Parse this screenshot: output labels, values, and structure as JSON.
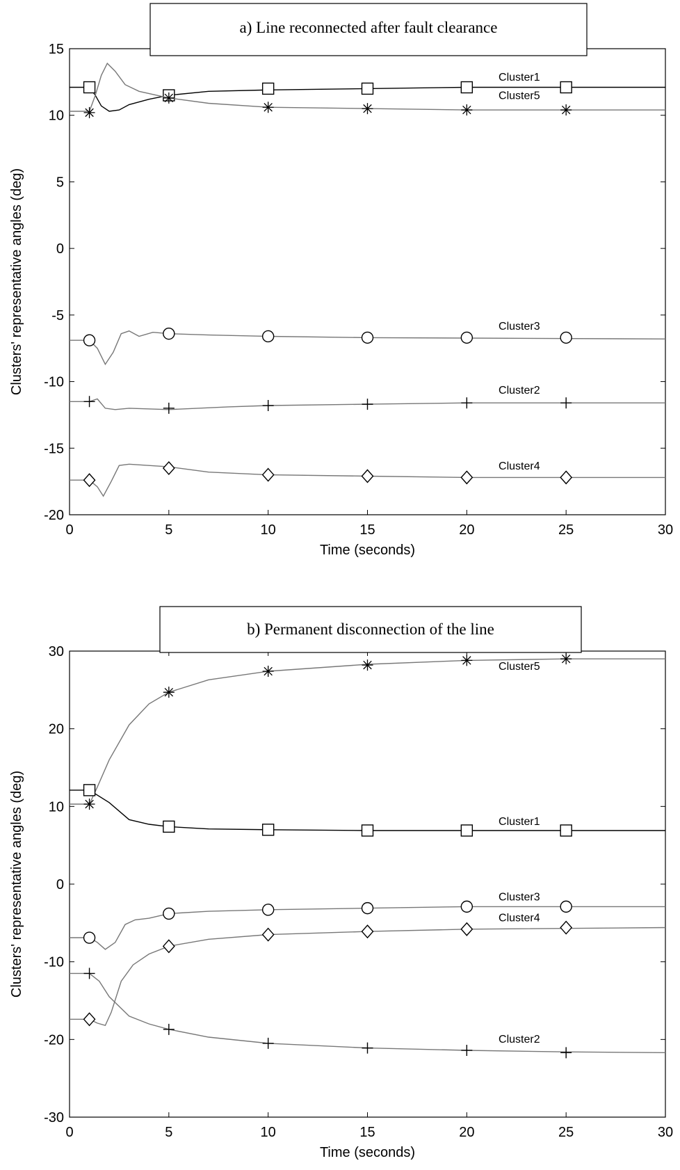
{
  "chart_data": [
    {
      "type": "line",
      "title": "a)   Line reconnected after fault clearance",
      "xlabel": "Time (seconds)",
      "ylabel": "Clusters' representative angles (deg)",
      "xlim": [
        0,
        30
      ],
      "ylim": [
        -20,
        15
      ],
      "xticks": [
        0,
        5,
        10,
        15,
        20,
        25,
        30
      ],
      "yticks": [
        -20,
        -15,
        -10,
        -5,
        0,
        5,
        10,
        15
      ],
      "grid": false,
      "series": [
        {
          "name": "Cluster1",
          "marker": "square",
          "color": "#000000",
          "label_pos": [
            21.6,
            12.6
          ],
          "points": [
            [
              0,
              12.1
            ],
            [
              1,
              12.1
            ],
            [
              1.3,
              11.5
            ],
            [
              1.6,
              10.7
            ],
            [
              2,
              10.3
            ],
            [
              2.5,
              10.4
            ],
            [
              3,
              10.8
            ],
            [
              4,
              11.2
            ],
            [
              5,
              11.5
            ],
            [
              7,
              11.8
            ],
            [
              10,
              11.9
            ],
            [
              15,
              12.0
            ],
            [
              20,
              12.1
            ],
            [
              30,
              12.1
            ]
          ],
          "markers": [
            [
              1,
              12.1
            ],
            [
              5,
              11.5
            ],
            [
              10,
              12.0
            ],
            [
              15,
              12.0
            ],
            [
              20,
              12.1
            ],
            [
              25,
              12.1
            ]
          ]
        },
        {
          "name": "Cluster5",
          "marker": "star",
          "color": "#777777",
          "label_pos": [
            21.6,
            11.2
          ],
          "points": [
            [
              0,
              10.3
            ],
            [
              1,
              10.3
            ],
            [
              1.3,
              11.5
            ],
            [
              1.6,
              13.0
            ],
            [
              1.9,
              13.9
            ],
            [
              2.3,
              13.3
            ],
            [
              2.8,
              12.3
            ],
            [
              3.5,
              11.8
            ],
            [
              5,
              11.3
            ],
            [
              7,
              10.9
            ],
            [
              10,
              10.6
            ],
            [
              15,
              10.5
            ],
            [
              20,
              10.4
            ],
            [
              30,
              10.4
            ]
          ],
          "markers": [
            [
              1,
              10.2
            ],
            [
              5,
              11.3
            ],
            [
              10,
              10.6
            ],
            [
              15,
              10.5
            ],
            [
              20,
              10.4
            ],
            [
              25,
              10.4
            ]
          ]
        },
        {
          "name": "Cluster3",
          "marker": "circle",
          "color": "#777777",
          "label_pos": [
            21.6,
            -6.1
          ],
          "points": [
            [
              0,
              -6.9
            ],
            [
              1,
              -6.9
            ],
            [
              1.4,
              -7.5
            ],
            [
              1.8,
              -8.7
            ],
            [
              2.2,
              -7.8
            ],
            [
              2.6,
              -6.4
            ],
            [
              3,
              -6.2
            ],
            [
              3.5,
              -6.6
            ],
            [
              4.2,
              -6.3
            ],
            [
              5,
              -6.4
            ],
            [
              7,
              -6.5
            ],
            [
              10,
              -6.6
            ],
            [
              15,
              -6.7
            ],
            [
              30,
              -6.8
            ]
          ],
          "markers": [
            [
              1,
              -6.9
            ],
            [
              5,
              -6.4
            ],
            [
              10,
              -6.6
            ],
            [
              15,
              -6.7
            ],
            [
              20,
              -6.7
            ],
            [
              25,
              -6.7
            ]
          ]
        },
        {
          "name": "Cluster2",
          "marker": "plus",
          "color": "#777777",
          "label_pos": [
            21.6,
            -10.9
          ],
          "points": [
            [
              0,
              -11.5
            ],
            [
              1,
              -11.5
            ],
            [
              1.4,
              -11.3
            ],
            [
              1.8,
              -12.0
            ],
            [
              2.3,
              -12.1
            ],
            [
              3,
              -12.0
            ],
            [
              5,
              -12.1
            ],
            [
              8,
              -11.9
            ],
            [
              10,
              -11.8
            ],
            [
              15,
              -11.7
            ],
            [
              20,
              -11.6
            ],
            [
              30,
              -11.6
            ]
          ],
          "markers": [
            [
              1,
              -11.5
            ],
            [
              5,
              -12.0
            ],
            [
              10,
              -11.8
            ],
            [
              15,
              -11.7
            ],
            [
              20,
              -11.6
            ],
            [
              25,
              -11.6
            ]
          ]
        },
        {
          "name": "Cluster4",
          "marker": "diamond",
          "color": "#777777",
          "label_pos": [
            21.6,
            -16.6
          ],
          "points": [
            [
              0,
              -17.4
            ],
            [
              1,
              -17.4
            ],
            [
              1.4,
              -17.9
            ],
            [
              1.7,
              -18.6
            ],
            [
              2.1,
              -17.5
            ],
            [
              2.5,
              -16.3
            ],
            [
              3,
              -16.2
            ],
            [
              5,
              -16.4
            ],
            [
              7,
              -16.8
            ],
            [
              10,
              -17.0
            ],
            [
              15,
              -17.1
            ],
            [
              20,
              -17.2
            ],
            [
              30,
              -17.2
            ]
          ],
          "markers": [
            [
              1,
              -17.4
            ],
            [
              5,
              -16.5
            ],
            [
              10,
              -17.0
            ],
            [
              15,
              -17.1
            ],
            [
              20,
              -17.2
            ],
            [
              25,
              -17.2
            ]
          ]
        }
      ]
    },
    {
      "type": "line",
      "title": "b)   Permanent disconnection of the line",
      "xlabel": "Time (seconds)",
      "ylabel": "Clusters' representative angles (deg)",
      "xlim": [
        0,
        30
      ],
      "ylim": [
        -30,
        30
      ],
      "xticks": [
        0,
        5,
        10,
        15,
        20,
        25,
        30
      ],
      "yticks": [
        -30,
        -20,
        -10,
        0,
        10,
        20,
        30
      ],
      "grid": false,
      "series": [
        {
          "name": "Cluster5",
          "marker": "star",
          "color": "#777777",
          "label_pos": [
            21.6,
            27.6
          ],
          "points": [
            [
              0,
              10.3
            ],
            [
              1,
              10.3
            ],
            [
              1.4,
              12.5
            ],
            [
              2,
              16.0
            ],
            [
              3,
              20.5
            ],
            [
              4,
              23.2
            ],
            [
              5,
              24.7
            ],
            [
              7,
              26.3
            ],
            [
              10,
              27.4
            ],
            [
              15,
              28.3
            ],
            [
              20,
              28.8
            ],
            [
              25,
              29.0
            ],
            [
              30,
              29.0
            ]
          ],
          "markers": [
            [
              1,
              10.3
            ],
            [
              5,
              24.7
            ],
            [
              10,
              27.4
            ],
            [
              15,
              28.2
            ],
            [
              20,
              28.8
            ],
            [
              25,
              29.0
            ]
          ]
        },
        {
          "name": "Cluster1",
          "marker": "square",
          "color": "#000000",
          "label_pos": [
            21.6,
            7.6
          ],
          "points": [
            [
              0,
              12.1
            ],
            [
              1,
              12.1
            ],
            [
              2,
              10.5
            ],
            [
              3,
              8.3
            ],
            [
              4,
              7.7
            ],
            [
              5,
              7.4
            ],
            [
              7,
              7.1
            ],
            [
              10,
              7.0
            ],
            [
              15,
              6.9
            ],
            [
              20,
              6.9
            ],
            [
              30,
              6.9
            ]
          ],
          "markers": [
            [
              1,
              12.1
            ],
            [
              5,
              7.4
            ],
            [
              10,
              7.0
            ],
            [
              15,
              6.9
            ],
            [
              20,
              6.9
            ],
            [
              25,
              6.9
            ]
          ]
        },
        {
          "name": "Cluster3",
          "marker": "circle",
          "color": "#777777",
          "label_pos": [
            21.6,
            -2.1
          ],
          "points": [
            [
              0,
              -6.9
            ],
            [
              1,
              -6.9
            ],
            [
              1.4,
              -7.5
            ],
            [
              1.8,
              -8.4
            ],
            [
              2.3,
              -7.5
            ],
            [
              2.8,
              -5.2
            ],
            [
              3.3,
              -4.6
            ],
            [
              4,
              -4.4
            ],
            [
              5,
              -3.8
            ],
            [
              7,
              -3.5
            ],
            [
              10,
              -3.3
            ],
            [
              15,
              -3.1
            ],
            [
              20,
              -2.9
            ],
            [
              30,
              -2.9
            ]
          ],
          "markers": [
            [
              1,
              -6.9
            ],
            [
              5,
              -3.8
            ],
            [
              10,
              -3.3
            ],
            [
              15,
              -3.1
            ],
            [
              20,
              -2.9
            ],
            [
              25,
              -2.9
            ]
          ]
        },
        {
          "name": "Cluster4",
          "marker": "diamond",
          "color": "#777777",
          "label_pos": [
            21.6,
            -4.8
          ],
          "points": [
            [
              0,
              -17.4
            ],
            [
              1,
              -17.4
            ],
            [
              1.4,
              -17.9
            ],
            [
              1.8,
              -18.2
            ],
            [
              2.1,
              -16.5
            ],
            [
              2.6,
              -12.5
            ],
            [
              3.2,
              -10.4
            ],
            [
              4,
              -9.0
            ],
            [
              5,
              -8.0
            ],
            [
              7,
              -7.1
            ],
            [
              10,
              -6.5
            ],
            [
              15,
              -6.1
            ],
            [
              20,
              -5.8
            ],
            [
              30,
              -5.6
            ]
          ],
          "markers": [
            [
              1,
              -17.4
            ],
            [
              5,
              -8.0
            ],
            [
              10,
              -6.5
            ],
            [
              15,
              -6.1
            ],
            [
              20,
              -5.8
            ],
            [
              25,
              -5.6
            ]
          ]
        },
        {
          "name": "Cluster2",
          "marker": "plus",
          "color": "#777777",
          "label_pos": [
            21.6,
            -20.4
          ],
          "points": [
            [
              0,
              -11.5
            ],
            [
              1,
              -11.5
            ],
            [
              1.5,
              -12.5
            ],
            [
              2,
              -14.5
            ],
            [
              3,
              -17.0
            ],
            [
              4,
              -18.0
            ],
            [
              5,
              -18.7
            ],
            [
              7,
              -19.7
            ],
            [
              10,
              -20.5
            ],
            [
              15,
              -21.1
            ],
            [
              20,
              -21.4
            ],
            [
              25,
              -21.6
            ],
            [
              30,
              -21.7
            ]
          ],
          "markers": [
            [
              1,
              -11.5
            ],
            [
              5,
              -18.7
            ],
            [
              10,
              -20.5
            ],
            [
              15,
              -21.1
            ],
            [
              20,
              -21.4
            ],
            [
              25,
              -21.7
            ]
          ]
        }
      ]
    }
  ]
}
